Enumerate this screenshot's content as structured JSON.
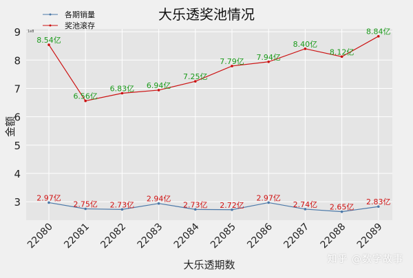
{
  "chart_data": {
    "type": "line",
    "title": "大乐透奖池情况",
    "xlabel": "大乐透期数",
    "ylabel": "金额",
    "y_multiplier_label": "1e8",
    "categories": [
      "22080",
      "22081",
      "22082",
      "22083",
      "22084",
      "22085",
      "22086",
      "22087",
      "22088",
      "22089"
    ],
    "ylim": [
      2.35,
      9.1
    ],
    "yticks": [
      3,
      4,
      5,
      6,
      7,
      8,
      9
    ],
    "grid": true,
    "legend_position": "top-left",
    "series": [
      {
        "name": "各期销量",
        "color": "#4a78a8",
        "label_color": "#d01010",
        "values": [
          2.97,
          2.75,
          2.73,
          2.94,
          2.73,
          2.72,
          2.97,
          2.74,
          2.65,
          2.83
        ],
        "labels": [
          "2.97亿",
          "2.75亿",
          "2.73亿",
          "2.94亿",
          "2.73亿",
          "2.72亿",
          "2.97亿",
          "2.74亿",
          "2.65亿",
          "2.83亿"
        ]
      },
      {
        "name": "奖池滚存",
        "color": "#cc1111",
        "label_color": "#1a9a1a",
        "values": [
          8.54,
          6.56,
          6.83,
          6.94,
          7.25,
          7.79,
          7.94,
          8.4,
          8.12,
          8.84
        ],
        "labels": [
          "8.54亿",
          "6.56亿",
          "6.83亿",
          "6.94亿",
          "7.25亿",
          "7.79亿",
          "7.94亿",
          "8.40亿",
          "8.12亿",
          "8.84亿"
        ]
      }
    ]
  },
  "watermark": "知乎 @数字故事"
}
